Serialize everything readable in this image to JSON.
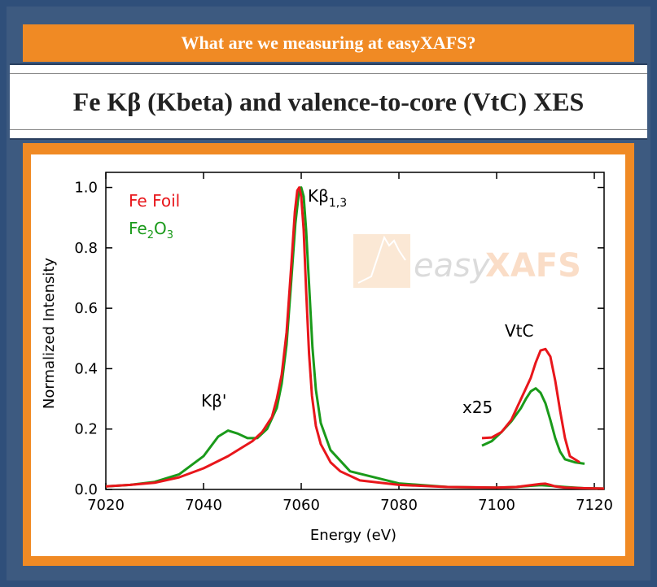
{
  "banner": {
    "text": "What are we measuring at easyXAFS?"
  },
  "title": {
    "text": "Fe Kβ (Kbeta) and valence-to-core (VtC) XES"
  },
  "watermark": {
    "text": "easyXAFS",
    "easy": "easy",
    "xafs": "XAFS"
  },
  "colors": {
    "fe_foil": "#e8161b",
    "fe2o3": "#1a9a1a",
    "accent": "#f08a24",
    "background": "#2f4f7a"
  },
  "chart_data": {
    "type": "line",
    "xlabel": "Energy (eV)",
    "ylabel": "Normalized Intensity",
    "xlim": [
      7020,
      7122
    ],
    "ylim": [
      0,
      1.05
    ],
    "xticks": [
      7020,
      7040,
      7060,
      7080,
      7100,
      7120
    ],
    "yticks": [
      "0.0",
      "0.2",
      "0.4",
      "0.6",
      "0.8",
      "1.0"
    ],
    "legend": {
      "placement": "top-left",
      "entries": [
        "Fe Foil",
        "Fe2O3"
      ]
    },
    "annotations": {
      "kb13": "Kβ",
      "kb13_sub": "1,3",
      "kbprime": "Kβ'",
      "vtc": "VtC",
      "x25": "x25"
    },
    "series": [
      {
        "name": "Fe Foil",
        "color": "#e8161b",
        "x": [
          7020,
          7025,
          7030,
          7035,
          7040,
          7045,
          7048,
          7050,
          7052,
          7054,
          7055,
          7056,
          7057,
          7058,
          7058.7,
          7059.2,
          7059.6,
          7060,
          7060.5,
          7061,
          7061.6,
          7062.2,
          7063,
          7064,
          7066,
          7068,
          7072,
          7080,
          7090,
          7100,
          7104,
          7107,
          7109,
          7110,
          7111,
          7112,
          7114,
          7118,
          7122
        ],
        "values": [
          0.01,
          0.015,
          0.022,
          0.04,
          0.07,
          0.11,
          0.14,
          0.16,
          0.19,
          0.24,
          0.3,
          0.38,
          0.52,
          0.75,
          0.92,
          0.99,
          1.0,
          0.97,
          0.86,
          0.66,
          0.45,
          0.31,
          0.21,
          0.15,
          0.09,
          0.06,
          0.03,
          0.015,
          0.008,
          0.006,
          0.008,
          0.014,
          0.018,
          0.019,
          0.015,
          0.01,
          0.006,
          0.004,
          0.003
        ]
      },
      {
        "name": "Fe2O3",
        "color": "#1a9a1a",
        "x": [
          7020,
          7025,
          7030,
          7035,
          7040,
          7043,
          7045,
          7047,
          7049,
          7051,
          7053,
          7055,
          7056,
          7057,
          7058,
          7058.8,
          7059.5,
          7060,
          7060.5,
          7061,
          7061.6,
          7062.3,
          7063,
          7064,
          7066,
          7070,
          7080,
          7090,
          7100,
          7104,
          7107,
          7109,
          7111,
          7114,
          7118,
          7122
        ],
        "values": [
          0.01,
          0.015,
          0.025,
          0.05,
          0.11,
          0.175,
          0.195,
          0.185,
          0.17,
          0.17,
          0.2,
          0.27,
          0.35,
          0.48,
          0.7,
          0.88,
          0.98,
          1.0,
          0.97,
          0.86,
          0.68,
          0.47,
          0.33,
          0.22,
          0.13,
          0.06,
          0.02,
          0.008,
          0.006,
          0.008,
          0.012,
          0.014,
          0.012,
          0.008,
          0.004,
          0.003
        ]
      },
      {
        "name": "Fe Foil",
        "color": "#e8161b",
        "x": [
          7097,
          7099,
          7101,
          7103,
          7105,
          7107,
          7108,
          7109,
          7110,
          7111,
          7112,
          7113,
          7114,
          7115,
          7117
        ],
        "values": [
          0.17,
          0.172,
          0.19,
          0.23,
          0.3,
          0.37,
          0.42,
          0.46,
          0.465,
          0.44,
          0.36,
          0.26,
          0.17,
          0.11,
          0.09
        ]
      },
      {
        "name": "Fe2O3",
        "color": "#1a9a1a",
        "x": [
          7097,
          7099,
          7101,
          7103,
          7105,
          7106,
          7107,
          7108,
          7109,
          7110,
          7111,
          7112,
          7113,
          7114,
          7116,
          7118
        ],
        "values": [
          0.145,
          0.16,
          0.19,
          0.225,
          0.27,
          0.3,
          0.325,
          0.335,
          0.32,
          0.285,
          0.23,
          0.17,
          0.125,
          0.1,
          0.09,
          0.085
        ]
      }
    ]
  }
}
